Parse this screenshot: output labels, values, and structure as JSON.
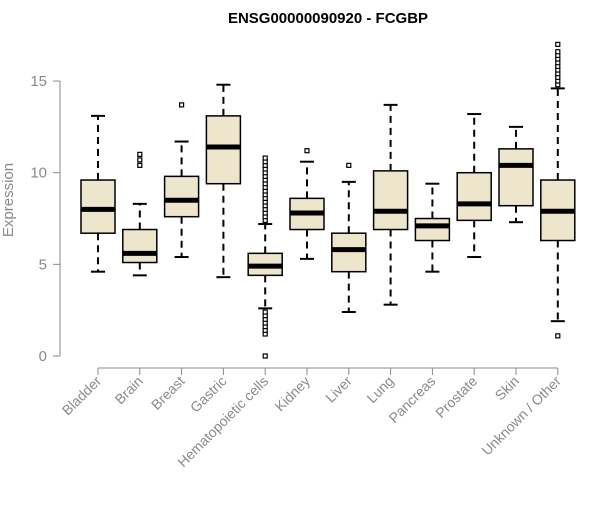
{
  "chart_data": {
    "type": "boxplot",
    "title": "ENSG00000090920 - FCGBP",
    "ylabel": "Expression",
    "ylim": [
      0,
      17
    ],
    "yticks": [
      0,
      5,
      10,
      15
    ],
    "grid": false,
    "colors": {
      "box_fill": "#ede6cc",
      "stroke": "#000000",
      "axis": "#8a8a8a"
    },
    "categories": [
      "Bladder",
      "Brain",
      "Breast",
      "Gastric",
      "Hematopoietic cells",
      "Kidney",
      "Liver",
      "Lung",
      "Pancreas",
      "Prostate",
      "Skin",
      "Unknown / Other"
    ],
    "boxes": [
      {
        "category": "Bladder",
        "whisker_low": 4.6,
        "q1": 6.7,
        "median": 8.0,
        "q3": 9.6,
        "whisker_high": 13.1,
        "outliers": []
      },
      {
        "category": "Brain",
        "whisker_low": 4.4,
        "q1": 5.1,
        "median": 5.6,
        "q3": 6.9,
        "whisker_high": 8.3,
        "outliers": [
          10.4,
          10.7,
          11.0
        ]
      },
      {
        "category": "Breast",
        "whisker_low": 5.4,
        "q1": 7.6,
        "median": 8.5,
        "q3": 9.8,
        "whisker_high": 11.7,
        "outliers": [
          13.7
        ]
      },
      {
        "category": "Gastric",
        "whisker_low": 4.3,
        "q1": 9.4,
        "median": 11.4,
        "q3": 13.1,
        "whisker_high": 14.8,
        "outliers": []
      },
      {
        "category": "Hematopoietic cells",
        "whisker_low": 2.6,
        "q1": 4.4,
        "median": 4.9,
        "q3": 5.6,
        "whisker_high": 7.2,
        "outliers": [
          0.0,
          1.2,
          1.4,
          1.6,
          1.8,
          2.0,
          2.2,
          2.4,
          7.4,
          7.6,
          7.8,
          8.0,
          8.2,
          8.4,
          8.6,
          8.8,
          9.0,
          9.2,
          9.4,
          9.6,
          9.8,
          10.0,
          10.2,
          10.4,
          10.6,
          10.8
        ]
      },
      {
        "category": "Kidney",
        "whisker_low": 5.3,
        "q1": 6.9,
        "median": 7.8,
        "q3": 8.6,
        "whisker_high": 10.6,
        "outliers": [
          11.2
        ]
      },
      {
        "category": "Liver",
        "whisker_low": 2.4,
        "q1": 4.6,
        "median": 5.8,
        "q3": 6.7,
        "whisker_high": 9.5,
        "outliers": [
          10.4
        ]
      },
      {
        "category": "Lung",
        "whisker_low": 2.8,
        "q1": 6.9,
        "median": 7.9,
        "q3": 10.1,
        "whisker_high": 13.7,
        "outliers": []
      },
      {
        "category": "Pancreas",
        "whisker_low": 4.6,
        "q1": 6.3,
        "median": 7.1,
        "q3": 7.5,
        "whisker_high": 9.4,
        "outliers": []
      },
      {
        "category": "Prostate",
        "whisker_low": 5.4,
        "q1": 7.4,
        "median": 8.3,
        "q3": 10.0,
        "whisker_high": 13.2,
        "outliers": []
      },
      {
        "category": "Skin",
        "whisker_low": 7.3,
        "q1": 8.2,
        "median": 10.4,
        "q3": 11.3,
        "whisker_high": 12.5,
        "outliers": []
      },
      {
        "category": "Unknown / Other",
        "whisker_low": 1.9,
        "q1": 6.3,
        "median": 7.9,
        "q3": 9.6,
        "whisker_high": 14.6,
        "outliers": [
          1.1,
          14.8,
          15.0,
          15.2,
          15.4,
          15.6,
          15.8,
          16.0,
          16.2,
          16.4,
          16.6,
          17.0
        ]
      }
    ]
  }
}
